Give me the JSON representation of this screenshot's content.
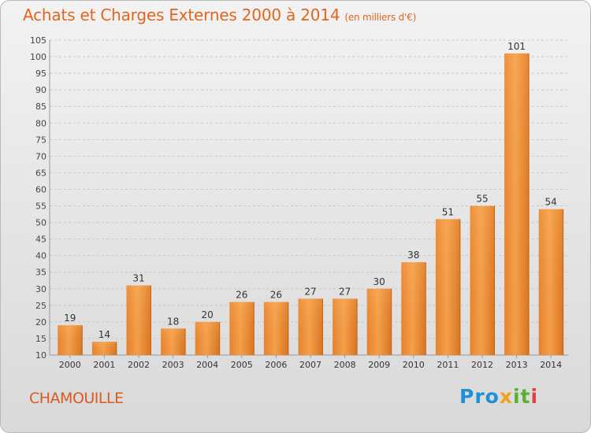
{
  "header": {
    "title": "Achats et Charges Externes 2000 à 2014",
    "unit": "(en milliers d'€)"
  },
  "footer": {
    "town": "CHAMOUILLE",
    "brand": [
      "Pro",
      "x",
      "it",
      "i"
    ]
  },
  "colors": {
    "title": "#e0671e",
    "bar_light": "#f7a450",
    "bar_dark": "#d97420",
    "grid": "#c8c8c8"
  },
  "chart_data": {
    "type": "bar",
    "title": "Achats et Charges Externes 2000 à 2014",
    "subtitle": "(en milliers d'€)",
    "categories": [
      "2000",
      "2001",
      "2002",
      "2003",
      "2004",
      "2005",
      "2006",
      "2007",
      "2008",
      "2009",
      "2010",
      "2011",
      "2012",
      "2013",
      "2014"
    ],
    "values": [
      19,
      14,
      31,
      18,
      20,
      26,
      26,
      27,
      27,
      30,
      38,
      51,
      55,
      101,
      54
    ],
    "ylim": [
      10,
      105
    ],
    "yticks": [
      10,
      15,
      20,
      25,
      30,
      35,
      40,
      45,
      50,
      55,
      60,
      65,
      70,
      75,
      80,
      85,
      90,
      95,
      100,
      105
    ],
    "grid": "horizontal dashed",
    "data_labels": true
  }
}
